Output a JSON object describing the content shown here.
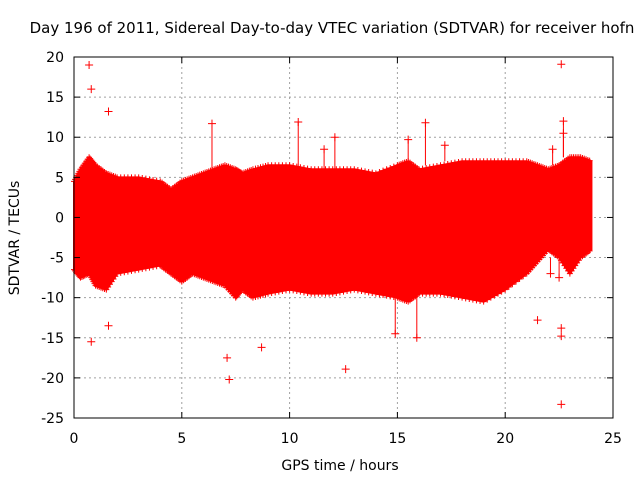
{
  "chart_data": {
    "type": "scatter",
    "title": "Day 196 of 2011, Sidereal Day-to-day VTEC variation (SDTVAR) for receiver hofn",
    "xlabel": "GPS time / hours",
    "ylabel": "SDTVAR / TECUs",
    "xlim": [
      0,
      25
    ],
    "ylim": [
      -25,
      20
    ],
    "xticks": [
      0,
      5,
      10,
      15,
      20,
      25
    ],
    "yticks": [
      -25,
      -20,
      -15,
      -10,
      -5,
      0,
      5,
      10,
      15,
      20
    ],
    "grid": true,
    "marker": "+",
    "series_color": "#ff0000",
    "series": [
      {
        "name": "SDTVAR",
        "envelope": {
          "x": [
            0.0,
            0.3,
            0.7,
            1.0,
            1.5,
            2.0,
            3.0,
            4.0,
            4.5,
            5.0,
            5.5,
            6.0,
            6.5,
            7.0,
            7.5,
            7.8,
            8.3,
            9.0,
            10.0,
            11.0,
            12.0,
            13.0,
            14.0,
            15.0,
            15.5,
            16.0,
            17.0,
            18.0,
            19.0,
            20.0,
            21.0,
            21.5,
            22.0,
            22.5,
            23.0,
            23.5,
            24.0
          ],
          "upper": [
            4.5,
            6.0,
            7.5,
            6.5,
            5.5,
            5.0,
            5.0,
            4.5,
            3.5,
            4.5,
            5.0,
            5.5,
            6.0,
            6.5,
            6.0,
            5.5,
            6.0,
            6.5,
            6.5,
            6.0,
            6.0,
            6.0,
            5.5,
            6.5,
            7.0,
            6.0,
            6.5,
            7.0,
            7.0,
            7.0,
            7.0,
            6.5,
            6.0,
            6.5,
            7.5,
            7.5,
            7.0
          ],
          "lower": [
            -6.5,
            -7.5,
            -7.0,
            -8.5,
            -9.0,
            -7.0,
            -6.5,
            -6.0,
            -7.0,
            -8.0,
            -7.0,
            -7.5,
            -8.0,
            -8.5,
            -10.0,
            -9.0,
            -10.0,
            -9.5,
            -9.0,
            -9.5,
            -9.5,
            -9.0,
            -9.5,
            -10.0,
            -10.5,
            -9.5,
            -9.5,
            -10.0,
            -10.5,
            -9.0,
            -7.0,
            -5.5,
            -4.0,
            -5.0,
            -7.0,
            -5.0,
            -4.0
          ]
        },
        "outliers": [
          {
            "x": 0.7,
            "y": 19.0
          },
          {
            "x": 0.8,
            "y": 16.0
          },
          {
            "x": 0.8,
            "y": -15.5
          },
          {
            "x": 1.6,
            "y": 13.2
          },
          {
            "x": 1.6,
            "y": -13.5
          },
          {
            "x": 6.4,
            "y": 11.7
          },
          {
            "x": 7.2,
            "y": -20.2
          },
          {
            "x": 7.1,
            "y": -17.5
          },
          {
            "x": 8.7,
            "y": -16.2
          },
          {
            "x": 10.4,
            "y": 11.9
          },
          {
            "x": 11.6,
            "y": 8.5
          },
          {
            "x": 12.1,
            "y": 10.0
          },
          {
            "x": 12.6,
            "y": -18.9
          },
          {
            "x": 14.9,
            "y": -14.5
          },
          {
            "x": 15.5,
            "y": 9.7
          },
          {
            "x": 15.9,
            "y": -15.0
          },
          {
            "x": 16.3,
            "y": 11.8
          },
          {
            "x": 17.2,
            "y": 9.0
          },
          {
            "x": 21.5,
            "y": -12.8
          },
          {
            "x": 22.1,
            "y": -7.0
          },
          {
            "x": 22.2,
            "y": 8.5
          },
          {
            "x": 22.5,
            "y": -7.5
          },
          {
            "x": 22.6,
            "y": 19.1
          },
          {
            "x": 22.6,
            "y": -13.8
          },
          {
            "x": 22.6,
            "y": -14.8
          },
          {
            "x": 22.6,
            "y": -23.3
          },
          {
            "x": 22.7,
            "y": 12.0
          },
          {
            "x": 22.7,
            "y": 10.5
          }
        ]
      }
    ]
  }
}
